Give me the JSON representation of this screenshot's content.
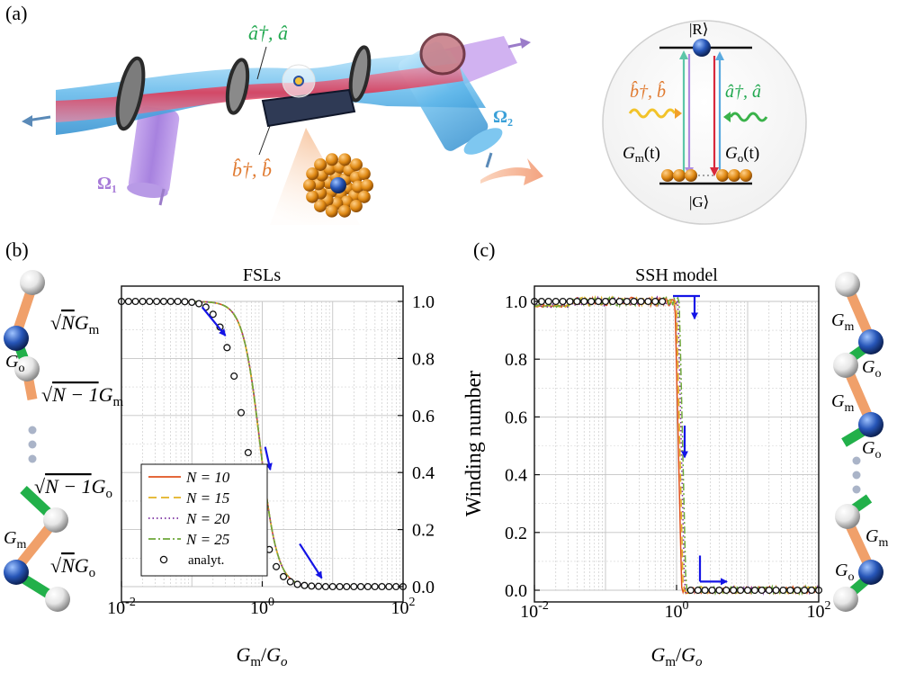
{
  "panel_labels": {
    "a": "(a)",
    "b": "(b)",
    "c": "(c)"
  },
  "panel_a": {
    "cavity_mode": "â†, â",
    "mechanical_mode": "b̂†, b̂",
    "drive_1": "Ω₁",
    "drive_2": "Ω₂",
    "level_diagram": {
      "excited_state": "|R⟩",
      "ground_state": "|G⟩",
      "mechanical_label": "b̂†, b̂",
      "cavity_label": "â†, â",
      "coupling_left": "G",
      "coupling_left_sub": "m",
      "coupling_left_arg": "(t)",
      "coupling_right": "G",
      "coupling_right_sub": "o",
      "coupling_right_arg": "(t)"
    }
  },
  "panel_b_chain": {
    "bond1": {
      "prefix": "√",
      "n": "N",
      "sym": "G",
      "sub": "m"
    },
    "bond2": {
      "sym": "G",
      "sub": "o"
    },
    "bond3": {
      "prefix": "√",
      "n": "N − 1",
      "sym": "G",
      "sub": "m"
    },
    "bond4": {
      "prefix": "√",
      "n": "N − 1",
      "sym": "G",
      "sub": "o"
    },
    "bond5": {
      "sym": "G",
      "sub": "m"
    },
    "bond6": {
      "prefix": "√",
      "n": "N",
      "sym": "G",
      "sub": "o"
    }
  },
  "panel_c_chain": {
    "labels": [
      {
        "sym": "G",
        "sub": "m"
      },
      {
        "sym": "G",
        "sub": "o"
      },
      {
        "sym": "G",
        "sub": "m"
      },
      {
        "sym": "G",
        "sub": "o"
      },
      {
        "sym": "G",
        "sub": "m"
      },
      {
        "sym": "G",
        "sub": "o"
      }
    ]
  },
  "chart_data": [
    {
      "id": "fsl",
      "type": "line",
      "title": "FSLs",
      "xlabel": "Gm/Go",
      "x_scale": "log",
      "xlim": [
        0.01,
        100
      ],
      "ylim": [
        0,
        1.0
      ],
      "y_axis_side": "right",
      "xticks": [
        {
          "base": "10",
          "exp": "-2"
        },
        {
          "base": "10",
          "exp": "0"
        },
        {
          "base": "10",
          "exp": "2"
        }
      ],
      "yticks": [
        "0.0",
        "0.2",
        "0.4",
        "0.6",
        "0.8",
        "1.0"
      ],
      "legend_position": "bottom-left",
      "series": [
        {
          "name": "N = 10",
          "style": "solid",
          "color": "#e0531f",
          "offset": 0.0,
          "noise": 0.0
        },
        {
          "name": "N = 15",
          "style": "dashed",
          "color": "#e2b223",
          "offset": -0.012,
          "noise": 0.0
        },
        {
          "name": "N = 20",
          "style": "dotted",
          "color": "#7b2fa0",
          "offset": 0.005,
          "noise": 0.0
        },
        {
          "name": "N = 25",
          "style": "dashdot",
          "color": "#6fa83a",
          "offset": 0.0,
          "noise": 0.0
        },
        {
          "name": "analyt.",
          "style": "markers",
          "color": "#111111"
        }
      ],
      "analytic_points": {
        "x": [
          0.01,
          0.0126,
          0.0158,
          0.02,
          0.0251,
          0.0316,
          0.0398,
          0.0501,
          0.0631,
          0.0794,
          0.1,
          0.126,
          0.158,
          0.2,
          0.251,
          0.316,
          0.398,
          0.501,
          0.631,
          0.794,
          1.0,
          1.26,
          1.58,
          2.0,
          2.51,
          3.16,
          3.98,
          5.01,
          6.31,
          7.94,
          10,
          12.6,
          15.8,
          20,
          25.1,
          31.6,
          39.8,
          50.1,
          63.1,
          79.4,
          100
        ],
        "y": [
          1.0,
          1.0,
          1.0,
          1.0,
          1.0,
          1.0,
          1.0,
          1.0,
          1.0,
          0.999,
          0.997,
          0.992,
          0.98,
          0.955,
          0.91,
          0.838,
          0.738,
          0.61,
          0.47,
          0.335,
          0.22,
          0.13,
          0.07,
          0.035,
          0.017,
          0.008,
          0.004,
          0.002,
          0.001,
          0.0,
          0.0,
          0.0,
          0.0,
          0.0,
          0.0,
          0.0,
          0.0,
          0.0,
          0.0,
          0.0,
          0.0
        ]
      },
      "fsl_curve": {
        "center": 0.93,
        "width": 0.28
      },
      "arrows": [
        {
          "from": [
            0.14,
            0.98
          ],
          "to": [
            0.3,
            0.88
          ]
        },
        {
          "from": [
            1.1,
            0.49
          ],
          "to": [
            1.3,
            0.41
          ]
        },
        {
          "from": [
            3.4,
            0.15
          ],
          "to": [
            7.0,
            0.03
          ]
        }
      ]
    },
    {
      "id": "ssh",
      "type": "line",
      "title": "SSH model",
      "xlabel": "Gm/Go",
      "ylabel": "Winding number",
      "x_scale": "log",
      "xlim": [
        0.01,
        100
      ],
      "ylim": [
        0,
        1.0
      ],
      "y_axis_side": "left",
      "xticks": [
        {
          "base": "10",
          "exp": "-2"
        },
        {
          "base": "10",
          "exp": "0"
        },
        {
          "base": "10",
          "exp": "2"
        }
      ],
      "yticks": [
        "0.0",
        "0.2",
        "0.4",
        "0.6",
        "0.8",
        "1.0"
      ],
      "transition_at": 1.0,
      "analytic_points": {
        "x": [
          0.01,
          0.0126,
          0.0158,
          0.02,
          0.0251,
          0.0316,
          0.0398,
          0.0501,
          0.0631,
          0.0794,
          0.1,
          0.126,
          0.158,
          0.2,
          0.251,
          0.316,
          0.398,
          0.501,
          0.631,
          1.58,
          2.0,
          2.51,
          3.16,
          3.98,
          5.01,
          6.31,
          7.94,
          10,
          12.6,
          15.8,
          20,
          25.1,
          31.6,
          39.8,
          50.1,
          63.1,
          79.4,
          100
        ],
        "y": [
          1,
          1,
          1,
          1,
          1,
          1,
          1,
          1,
          1,
          1,
          1,
          1,
          1,
          1,
          1,
          1,
          1,
          1,
          1,
          0,
          0,
          0,
          0,
          0,
          0,
          0,
          0,
          0,
          0,
          0,
          0,
          0,
          0,
          0,
          0,
          0,
          0,
          0
        ]
      }
    }
  ],
  "colors": {
    "axis": "#111111",
    "grid": "#bcbcbc",
    "arrow": "#1414e6",
    "bond_orange": "#f0a06a",
    "bond_green": "#22b04a",
    "atom": "#1f4fa8"
  }
}
